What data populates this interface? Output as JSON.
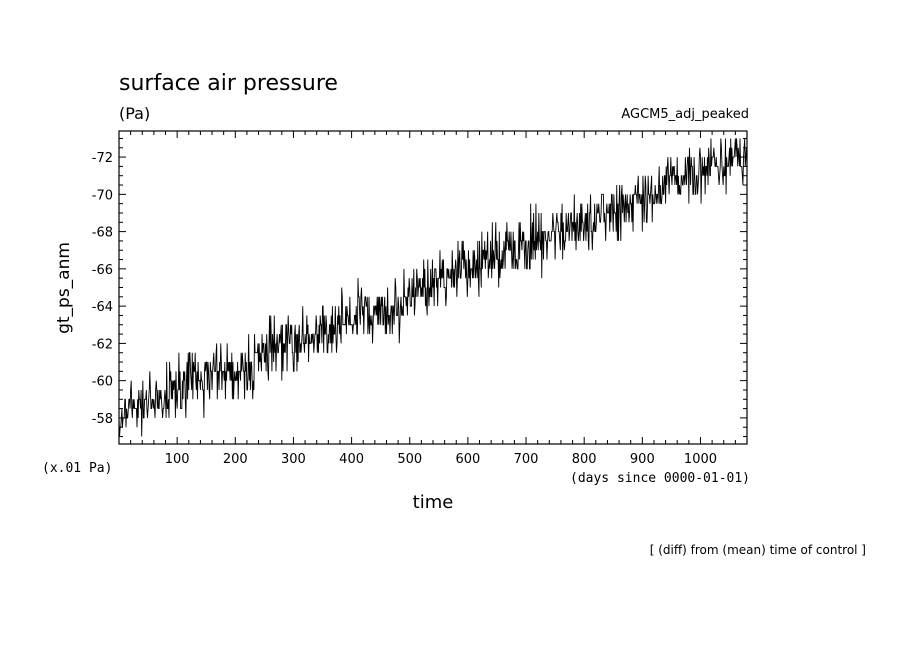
{
  "chart_data": {
    "type": "line",
    "title": "surface air pressure",
    "units": "(Pa)",
    "dataset": "AGCM5_adj_peaked",
    "ylabel": "gt_ps_anm",
    "yscale_note": "(x.01 Pa)",
    "xlabel": "time",
    "xunits": "(days since 0000-01-01)",
    "footer": "[ (diff) from (mean) time of control ]",
    "xlim": [
      0,
      1080
    ],
    "ylim": [
      -56.6,
      -73.4
    ],
    "y_inverted": true,
    "xticks": [
      100,
      200,
      300,
      400,
      500,
      600,
      700,
      800,
      900,
      1000
    ],
    "yticks": [
      -58,
      -60,
      -62,
      -64,
      -66,
      -68,
      -70,
      -72
    ],
    "xticklabels": [
      "100",
      "200",
      "300",
      "400",
      "500",
      "600",
      "700",
      "800",
      "900",
      "1000"
    ],
    "yticklabels": [
      "-58",
      "-60",
      "-62",
      "-64",
      "-66",
      "-68",
      "-70",
      "-72"
    ],
    "grid": false,
    "series": [
      {
        "color": "#000000",
        "x": [
          0,
          20,
          40,
          60,
          80,
          100,
          120,
          140,
          160,
          180,
          200,
          220,
          240,
          260,
          280,
          300,
          320,
          340,
          360,
          380,
          400,
          420,
          440,
          460,
          480,
          500,
          520,
          540,
          560,
          580,
          600,
          620,
          640,
          660,
          680,
          700,
          720,
          740,
          760,
          780,
          800,
          820,
          840,
          860,
          880,
          900,
          920,
          940,
          960,
          980,
          1000,
          1020,
          1040,
          1060,
          1080
        ],
        "y": [
          -58.1,
          -58.6,
          -58.9,
          -58.9,
          -59.3,
          -59.7,
          -59.9,
          -60.1,
          -60.4,
          -60.6,
          -60.7,
          -60.6,
          -61.0,
          -61.5,
          -61.9,
          -62.1,
          -62.3,
          -62.5,
          -62.7,
          -63.0,
          -63.3,
          -63.6,
          -63.6,
          -63.8,
          -64.0,
          -64.4,
          -64.8,
          -65.2,
          -65.5,
          -65.9,
          -66.2,
          -66.4,
          -66.6,
          -66.8,
          -67.0,
          -67.3,
          -67.6,
          -67.8,
          -68.1,
          -68.4,
          -68.6,
          -68.9,
          -69.2,
          -69.4,
          -69.6,
          -69.9,
          -70.2,
          -70.5,
          -70.8,
          -71.0,
          -71.2,
          -71.4,
          -71.6,
          -71.8,
          -72.0
        ],
        "daily_noise_pp": 2.2
      }
    ]
  }
}
